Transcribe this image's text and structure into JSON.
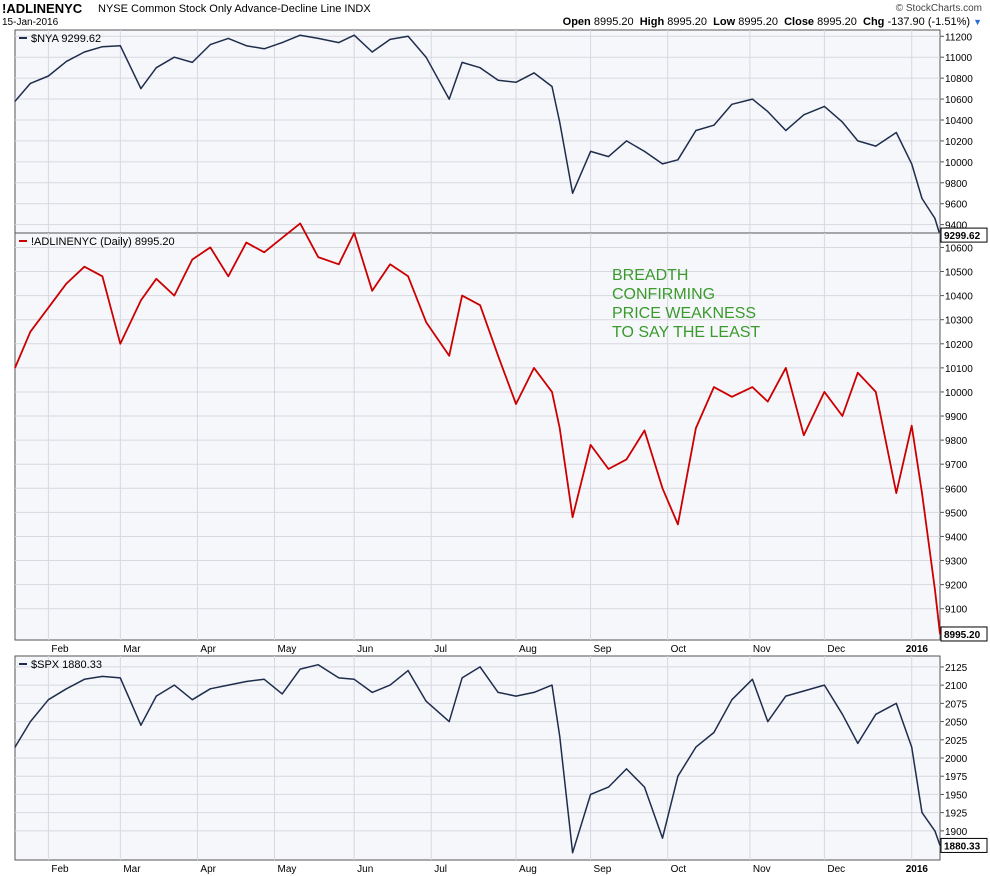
{
  "header": {
    "symbol": "!ADLINENYC",
    "description": "NYSE Common Stock Only Advance-Decline Line",
    "exchange": "INDX",
    "date": "15-Jan-2016",
    "logo": "© StockCharts.com",
    "open_label": "Open",
    "open": "8995.20",
    "high_label": "High",
    "high": "8995.20",
    "low_label": "Low",
    "low": "8995.20",
    "close_label": "Close",
    "close": "8995.20",
    "chg_label": "Chg",
    "chg": "-137.90 (-1.51%)",
    "chg_icon": "down-triangle-icon"
  },
  "months": [
    "Feb",
    "Mar",
    "Apr",
    "May",
    "Jun",
    "Jul",
    "Aug",
    "Sep",
    "Oct",
    "Nov",
    "Dec",
    "2016"
  ],
  "colors": {
    "nya": "#1f2d4d",
    "adline": "#cc0000",
    "spx": "#1f2d4d",
    "annotation": "#3a9a2c",
    "grid": "#d6d9e0"
  },
  "chart_data": [
    {
      "type": "line",
      "panel": "top",
      "legend": "$NYA 9299.62",
      "last_value_label": "9299.62",
      "yticks": [
        9400,
        9600,
        9800,
        10000,
        10200,
        10400,
        10600,
        10800,
        11000,
        11200
      ],
      "ylim": [
        9320,
        11260
      ],
      "grid": true,
      "x_range": [
        "2015-01-20",
        "2016-01-15"
      ],
      "series": [
        {
          "x": [
            "2015-01-20",
            "2015-01-26",
            "2015-02-02",
            "2015-02-09",
            "2015-02-16",
            "2015-02-23",
            "2015-03-02",
            "2015-03-10",
            "2015-03-16",
            "2015-03-23",
            "2015-03-30",
            "2015-04-06",
            "2015-04-13",
            "2015-04-20",
            "2015-04-27",
            "2015-05-04",
            "2015-05-11",
            "2015-05-18",
            "2015-05-26",
            "2015-06-01",
            "2015-06-08",
            "2015-06-15",
            "2015-06-22",
            "2015-06-29",
            "2015-07-08",
            "2015-07-13",
            "2015-07-20",
            "2015-07-27",
            "2015-08-03",
            "2015-08-10",
            "2015-08-17",
            "2015-08-20",
            "2015-08-25",
            "2015-09-01",
            "2015-09-08",
            "2015-09-15",
            "2015-09-22",
            "2015-09-29",
            "2015-10-05",
            "2015-10-12",
            "2015-10-19",
            "2015-10-26",
            "2015-11-03",
            "2015-11-09",
            "2015-11-16",
            "2015-11-23",
            "2015-12-01",
            "2015-12-08",
            "2015-12-14",
            "2015-12-21",
            "2015-12-29",
            "2016-01-04",
            "2016-01-08",
            "2016-01-13",
            "2016-01-15"
          ],
          "values": [
            10580,
            10750,
            10820,
            10960,
            11050,
            11100,
            11110,
            10700,
            10900,
            11000,
            10950,
            11120,
            11180,
            11110,
            11080,
            11140,
            11210,
            11180,
            11140,
            11210,
            11050,
            11170,
            11200,
            11000,
            10600,
            10950,
            10900,
            10780,
            10760,
            10850,
            10720,
            10380,
            9700,
            10100,
            10050,
            10200,
            10100,
            9980,
            10020,
            10300,
            10350,
            10550,
            10600,
            10480,
            10300,
            10450,
            10530,
            10380,
            10200,
            10150,
            10280,
            9980,
            9650,
            9460,
            9300
          ]
        }
      ]
    },
    {
      "type": "line",
      "panel": "middle",
      "legend": "!ADLINENYC (Daily) 8995.20",
      "last_value_label": "8995.20",
      "yticks": [
        9100,
        9200,
        9300,
        9400,
        9500,
        9600,
        9700,
        9800,
        9900,
        10000,
        10100,
        10200,
        10300,
        10400,
        10500,
        10600
      ],
      "ylim": [
        8970,
        10660
      ],
      "grid": true,
      "annotation": [
        "BREADTH",
        "CONFIRMING",
        "PRICE WEAKNESS",
        "TO SAY THE LEAST"
      ],
      "x_range": [
        "2015-01-20",
        "2016-01-15"
      ],
      "series": [
        {
          "x": [
            "2015-01-20",
            "2015-01-26",
            "2015-02-02",
            "2015-02-09",
            "2015-02-16",
            "2015-02-23",
            "2015-03-02",
            "2015-03-10",
            "2015-03-16",
            "2015-03-23",
            "2015-03-30",
            "2015-04-06",
            "2015-04-13",
            "2015-04-20",
            "2015-04-27",
            "2015-05-04",
            "2015-05-11",
            "2015-05-18",
            "2015-05-26",
            "2015-06-01",
            "2015-06-08",
            "2015-06-15",
            "2015-06-22",
            "2015-06-29",
            "2015-07-08",
            "2015-07-13",
            "2015-07-20",
            "2015-07-27",
            "2015-08-03",
            "2015-08-10",
            "2015-08-17",
            "2015-08-20",
            "2015-08-25",
            "2015-09-01",
            "2015-09-08",
            "2015-09-15",
            "2015-09-22",
            "2015-09-29",
            "2015-10-05",
            "2015-10-12",
            "2015-10-19",
            "2015-10-26",
            "2015-11-03",
            "2015-11-09",
            "2015-11-16",
            "2015-11-23",
            "2015-12-01",
            "2015-12-08",
            "2015-12-14",
            "2015-12-21",
            "2015-12-29",
            "2016-01-04",
            "2016-01-08",
            "2016-01-13",
            "2016-01-15"
          ],
          "values": [
            10100,
            10250,
            10350,
            10450,
            10520,
            10480,
            10200,
            10380,
            10470,
            10400,
            10550,
            10600,
            10480,
            10620,
            10580,
            10640,
            10700,
            10560,
            10530,
            10660,
            10420,
            10530,
            10480,
            10290,
            10150,
            10400,
            10360,
            10150,
            9950,
            10100,
            10000,
            9850,
            9480,
            9780,
            9680,
            9720,
            9840,
            9600,
            9450,
            9850,
            10020,
            9980,
            10020,
            9960,
            10100,
            9820,
            10000,
            9900,
            10080,
            10000,
            9580,
            9860,
            9580,
            9180,
            8995
          ]
        }
      ]
    },
    {
      "type": "line",
      "panel": "bottom",
      "legend": "$SPX 1880.33",
      "last_value_label": "1880.33",
      "yticks": [
        1900,
        1925,
        1950,
        1975,
        2000,
        2025,
        2050,
        2075,
        2100,
        2125
      ],
      "ylim": [
        1860,
        2140
      ],
      "grid": true,
      "x_range": [
        "2015-01-20",
        "2016-01-15"
      ],
      "series": [
        {
          "x": [
            "2015-01-20",
            "2015-01-26",
            "2015-02-02",
            "2015-02-09",
            "2015-02-16",
            "2015-02-23",
            "2015-03-02",
            "2015-03-10",
            "2015-03-16",
            "2015-03-23",
            "2015-03-30",
            "2015-04-06",
            "2015-04-13",
            "2015-04-20",
            "2015-04-27",
            "2015-05-04",
            "2015-05-11",
            "2015-05-18",
            "2015-05-26",
            "2015-06-01",
            "2015-06-08",
            "2015-06-15",
            "2015-06-22",
            "2015-06-29",
            "2015-07-08",
            "2015-07-13",
            "2015-07-20",
            "2015-07-27",
            "2015-08-03",
            "2015-08-10",
            "2015-08-17",
            "2015-08-20",
            "2015-08-25",
            "2015-09-01",
            "2015-09-08",
            "2015-09-15",
            "2015-09-22",
            "2015-09-29",
            "2015-10-05",
            "2015-10-12",
            "2015-10-19",
            "2015-10-26",
            "2015-11-03",
            "2015-11-09",
            "2015-11-16",
            "2015-11-23",
            "2015-12-01",
            "2015-12-08",
            "2015-12-14",
            "2015-12-21",
            "2015-12-29",
            "2016-01-04",
            "2016-01-08",
            "2016-01-13",
            "2016-01-15"
          ],
          "values": [
            2015,
            2050,
            2080,
            2095,
            2108,
            2112,
            2110,
            2045,
            2085,
            2100,
            2080,
            2095,
            2100,
            2105,
            2108,
            2088,
            2122,
            2128,
            2110,
            2108,
            2090,
            2100,
            2120,
            2078,
            2050,
            2110,
            2125,
            2090,
            2085,
            2090,
            2100,
            2030,
            1870,
            1950,
            1960,
            1985,
            1960,
            1890,
            1975,
            2015,
            2035,
            2080,
            2108,
            2050,
            2085,
            2092,
            2100,
            2060,
            2020,
            2060,
            2075,
            2015,
            1925,
            1900,
            1880
          ]
        }
      ]
    }
  ]
}
